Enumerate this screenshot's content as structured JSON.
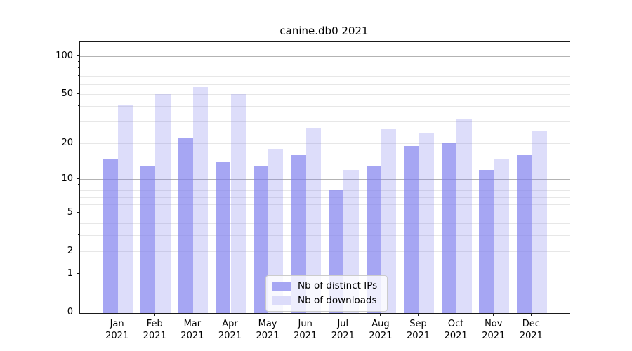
{
  "title": "canine.db0 2021",
  "legend": {
    "items": [
      {
        "label": "Nb of distinct IPs",
        "series_key": "ips"
      },
      {
        "label": "Nb of downloads",
        "series_key": "downloads"
      }
    ]
  },
  "colors": {
    "ips_fill": "rgba(128,128,238,0.70)",
    "downloads_fill": "rgba(128,128,238,0.27)",
    "ips_solid": "#a6a6f3",
    "downloads_solid": "#dcdcfa",
    "grid_major": "#b3b3b3",
    "grid_minor": "#e7e7e7",
    "spine": "#1a1a1a"
  },
  "chart_data": {
    "type": "bar",
    "title": "canine.db0 2021",
    "year": "2021",
    "categories": [
      "Jan 2021",
      "Feb 2021",
      "Mar 2021",
      "Apr 2021",
      "May 2021",
      "Jun 2021",
      "Jul 2021",
      "Aug 2021",
      "Sep 2021",
      "Oct 2021",
      "Nov 2021",
      "Dec 2021"
    ],
    "month_labels": [
      "Jan",
      "Feb",
      "Mar",
      "Apr",
      "May",
      "Jun",
      "Jul",
      "Aug",
      "Sep",
      "Oct",
      "Nov",
      "Dec"
    ],
    "series": [
      {
        "name": "Nb of distinct IPs",
        "key": "ips",
        "values": [
          15,
          13,
          22,
          14,
          13,
          16,
          8,
          13,
          19,
          20,
          12,
          16
        ]
      },
      {
        "name": "Nb of downloads",
        "key": "downloads",
        "values": [
          41,
          50,
          57,
          50,
          18,
          27,
          12,
          26,
          24,
          32,
          15,
          25
        ]
      }
    ],
    "xlabel": "",
    "ylabel": "",
    "yscale": "log1p",
    "ylim": [
      0,
      129
    ],
    "y_major_ticks": [
      0,
      1,
      2,
      5,
      10,
      20,
      50,
      100
    ],
    "y_power_ticks": [
      1,
      10,
      100
    ],
    "y_minor_gridlines": [
      3,
      4,
      6,
      7,
      8,
      9,
      30,
      40,
      60,
      70,
      80,
      90
    ],
    "grid": "horizontal",
    "legend_position": "lower center"
  }
}
